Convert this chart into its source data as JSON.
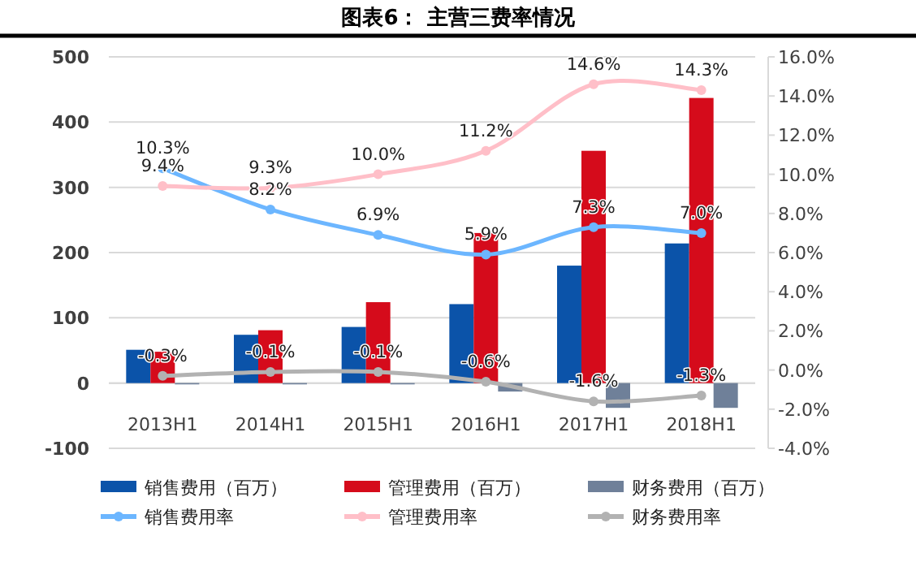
{
  "chart_data": {
    "type": "bar",
    "title": "图表6：  主营三费率情况",
    "categories": [
      "2013H1",
      "2014H1",
      "2015H1",
      "2016H1",
      "2017H1",
      "2018H1"
    ],
    "series": [
      {
        "name": "销售费用（百万）",
        "color": "#0b53a9",
        "values": [
          51,
          74,
          86,
          121,
          180,
          214
        ]
      },
      {
        "name": "管理费用（百万）",
        "color": "#d50b1b",
        "values": [
          48,
          81,
          124,
          230,
          356,
          437
        ]
      },
      {
        "name": "财务费用（百万）",
        "color": "#6f8099",
        "values": [
          -2,
          -2,
          -2,
          -13,
          -38,
          -38
        ]
      },
      {
        "name": "销售费用率",
        "type": "line",
        "axis": "y2",
        "color": "#6cb6ff",
        "values": [
          10.3,
          8.2,
          6.9,
          5.9,
          7.3,
          7.0
        ],
        "value_labels": [
          "10.3%",
          "8.2%",
          "6.9%",
          "5.9%",
          "7.3%",
          "7.0%"
        ]
      },
      {
        "name": "管理费用率",
        "type": "line",
        "axis": "y2",
        "color": "#ffbfc8",
        "values": [
          9.4,
          9.3,
          10.0,
          11.2,
          14.6,
          14.3
        ],
        "value_labels": [
          "9.4%",
          "9.3%",
          "10.0%",
          "11.2%",
          "14.6%",
          "14.3%"
        ]
      },
      {
        "name": "财务费用率",
        "type": "line",
        "axis": "y2",
        "color": "#b2b2b2",
        "values": [
          -0.3,
          -0.1,
          -0.1,
          -0.6,
          -1.6,
          -1.3
        ],
        "value_labels": [
          "-0.3%",
          "-0.1%",
          "-0.1%",
          "-0.6%",
          "-1.6%",
          "-1.3%"
        ]
      }
    ],
    "ylim": [
      -100,
      500
    ],
    "yticks": [
      -100,
      0,
      100,
      200,
      300,
      400,
      500
    ],
    "y2lim": [
      -4,
      16
    ],
    "y2ticks": [
      {
        "value": -4,
        "label": "-4.0%"
      },
      {
        "value": -2,
        "label": "-2.0%"
      },
      {
        "value": 0,
        "label": "0.0%"
      },
      {
        "value": 2,
        "label": "2.0%"
      },
      {
        "value": 4,
        "label": "4.0%"
      },
      {
        "value": 6,
        "label": "6.0%"
      },
      {
        "value": 8,
        "label": "8.0%"
      },
      {
        "value": 10,
        "label": "10.0%"
      },
      {
        "value": 12,
        "label": "12.0%"
      },
      {
        "value": 14,
        "label": "14.0%"
      },
      {
        "value": 16,
        "label": "16.0%"
      }
    ],
    "grid": "y",
    "legend": "bottom",
    "marker": "circle"
  }
}
